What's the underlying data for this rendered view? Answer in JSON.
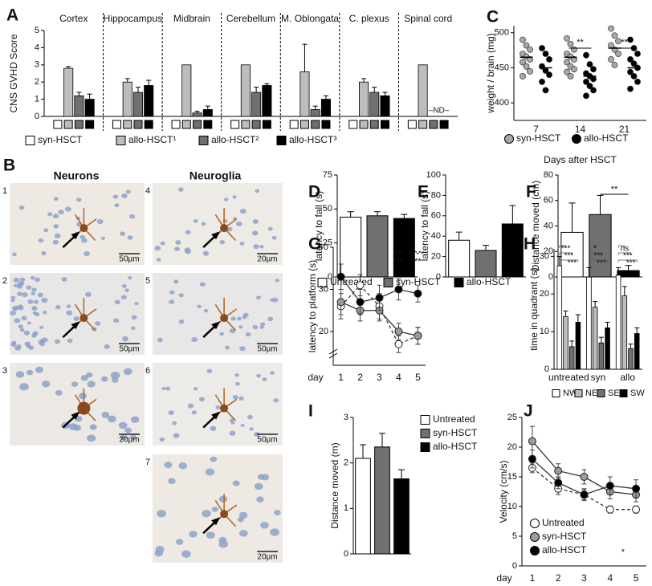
{
  "chart_data": [
    {
      "type": "grouped_bar",
      "panel": "A",
      "ylabel": "CNS GVHD Score",
      "categories": [
        "Cortex",
        "Hippocampus",
        "Midbrain",
        "Cerebellum",
        "M. Oblongata",
        "C. plexus",
        "Spinal cord"
      ],
      "ylim": [
        0,
        5
      ],
      "yticks": [
        0,
        1,
        2,
        3,
        4,
        5
      ],
      "series": [
        {
          "name": "syn-HSCT",
          "color": "#ffffff",
          "values": [
            0,
            0,
            0,
            0,
            0,
            0,
            0
          ],
          "errors": [
            null,
            null,
            null,
            null,
            null,
            null,
            null
          ]
        },
        {
          "name": "allo-HSCT¹",
          "color": "#bdbdbd",
          "values": [
            2.8,
            2.0,
            3.0,
            3.0,
            2.6,
            2.0,
            3.0
          ],
          "errors": [
            0.1,
            0.2,
            null,
            null,
            1.6,
            0.2,
            null
          ]
        },
        {
          "name": "allo-HSCT²",
          "color": "#707070",
          "values": [
            1.2,
            1.4,
            0.2,
            1.4,
            0.4,
            1.4,
            null
          ],
          "errors": [
            0.2,
            0.3,
            0.1,
            0.3,
            0.2,
            0.3,
            null
          ]
        },
        {
          "name": "allo-HSCT³",
          "color": "#000000",
          "values": [
            1.0,
            1.8,
            0.4,
            1.8,
            1.0,
            1.2,
            null
          ],
          "errors": [
            0.3,
            0.3,
            0.2,
            0.1,
            0.2,
            0.2,
            null
          ]
        }
      ],
      "annotations": [
        "–ND–"
      ]
    },
    {
      "type": "strip",
      "panel": "C",
      "ylabel": "weight / brain (mg)",
      "xlabel": "Days after HSCT",
      "categories": [
        "7",
        "14",
        "21"
      ],
      "ylim": [
        375,
        510
      ],
      "yticks": [
        400,
        450,
        500
      ],
      "series": [
        {
          "name": "syn-HSCT",
          "color": "#a8a8a8",
          "values": [
            [
              490,
              482,
              476,
              470,
              466,
              462,
              458,
              452,
              445,
              438
            ],
            [
              492,
              484,
              476,
              470,
              466,
              462,
              458,
              452,
              448,
              444,
              438
            ],
            [
              506,
              496,
              488,
              482,
              476,
              470,
              462,
              454
            ]
          ],
          "means": [
            465,
            465,
            478
          ]
        },
        {
          "name": "allo-HSCT",
          "color": "#000000",
          "values": [
            [
              478,
              470,
              462,
              452,
              446,
              440,
              430,
              418
            ],
            [
              468,
              455,
              448,
              442,
              438,
              434,
              430,
              424,
              418,
              410
            ],
            [
              490,
              478,
              470,
              462,
              456,
              450,
              444,
              438,
              430,
              420
            ]
          ],
          "means": [
            450,
            438,
            450
          ]
        }
      ],
      "annotations": [
        "**",
        "**"
      ]
    },
    {
      "type": "bar",
      "panel": "D",
      "ylabel": "latency to fall (s)",
      "ylim": [
        0,
        75
      ],
      "yticks": [
        0,
        25,
        50,
        75
      ],
      "values": [
        44,
        45,
        43
      ],
      "errors": [
        4,
        3,
        3
      ],
      "colors": [
        "#ffffff",
        "#707070",
        "#000000"
      ],
      "legend": [
        "Untreated",
        "syn-HSCT",
        "allo-HSCT"
      ]
    },
    {
      "type": "bar",
      "panel": "E",
      "ylabel": "latency to fall (s)",
      "ylim": [
        0,
        100
      ],
      "yticks": [
        0,
        20,
        40,
        60,
        80,
        100
      ],
      "values": [
        36,
        26,
        52
      ],
      "errors": [
        8,
        5,
        18
      ],
      "colors": [
        "#ffffff",
        "#707070",
        "#000000"
      ]
    },
    {
      "type": "bar",
      "panel": "F",
      "ylabel": "Distance moved (cm)",
      "ylim": [
        0,
        80
      ],
      "yticks": [
        0,
        20,
        40,
        60,
        80
      ],
      "values": [
        35,
        49,
        5
      ],
      "errors": [
        23,
        15,
        4
      ],
      "colors": [
        "#ffffff",
        "#707070",
        "#000000"
      ],
      "annotations": [
        "**"
      ]
    },
    {
      "type": "line",
      "panel": "G",
      "ylabel": "latency to platform (s)",
      "xlabel": "day",
      "x": [
        1,
        2,
        3,
        4,
        5
      ],
      "xlim": [
        0.6,
        5.4
      ],
      "ylim": [
        12,
        40
      ],
      "yticks": [
        20,
        30,
        40
      ],
      "series": [
        {
          "color": "#ffffff",
          "dash": true,
          "values": [
            26,
            31,
            26,
            17,
            19
          ],
          "errors": [
            3,
            2.5,
            3,
            2,
            2
          ]
        },
        {
          "color": "#9a9a9a",
          "values": [
            27,
            25,
            25,
            20,
            19
          ],
          "errors": [
            3,
            2.5,
            2.5,
            2,
            2
          ]
        },
        {
          "color": "#000000",
          "values": [
            33,
            27,
            28,
            30,
            29
          ],
          "errors": [
            3,
            3,
            3,
            2.5,
            2
          ]
        }
      ],
      "annotations": [
        {
          "x": 4,
          "text": "^^"
        },
        {
          "x": 4,
          "text": "***"
        },
        {
          "x": 5,
          "text": "^^"
        },
        {
          "x": 5,
          "text": "**"
        }
      ]
    },
    {
      "type": "grouped_bar",
      "panel": "H",
      "ylabel": "time in quadrant (s)",
      "categories": [
        "untreated",
        "syn",
        "allo"
      ],
      "ylim": [
        0,
        32
      ],
      "yticks": [
        0,
        10,
        20,
        30
      ],
      "series": [
        {
          "name": "NW",
          "color": "#ffffff",
          "values": [
            27.5,
            24.5,
            25
          ],
          "errors": [
            2.5,
            2.5,
            2
          ]
        },
        {
          "name": "NE",
          "color": "#bdbdbd",
          "values": [
            14,
            16.5,
            19.5
          ],
          "errors": [
            1.5,
            1.5,
            2.5
          ]
        },
        {
          "name": "SE",
          "color": "#707070",
          "values": [
            6,
            7,
            5.5
          ],
          "errors": [
            1.5,
            1.5,
            1.2
          ]
        },
        {
          "name": "SW",
          "color": "#000000",
          "values": [
            12.5,
            11,
            9.5
          ],
          "errors": [
            2,
            1.5,
            1.5
          ]
        }
      ],
      "annotations": [
        [
          "***",
          "***",
          "***"
        ],
        [
          "*",
          "***",
          "***"
        ],
        [
          "ns",
          "***",
          "***"
        ]
      ]
    },
    {
      "type": "bar",
      "panel": "I",
      "ylabel": "Distance moved (m)",
      "ylim": [
        0,
        3
      ],
      "yticks": [
        0,
        1,
        2,
        3
      ],
      "values": [
        2.1,
        2.35,
        1.65
      ],
      "errors": [
        0.3,
        0.3,
        0.2
      ],
      "colors": [
        "#ffffff",
        "#707070",
        "#000000"
      ],
      "legend": [
        "Untreated",
        "syn-HSCT",
        "allo-HSCT"
      ]
    },
    {
      "type": "line",
      "panel": "J",
      "ylabel": "Velocity (cm/s)",
      "xlabel": "day",
      "x": [
        1,
        2,
        3,
        4,
        5
      ],
      "xlim": [
        0.6,
        5.4
      ],
      "ylim": [
        0,
        25
      ],
      "yticks": [
        0,
        5,
        10,
        15,
        20,
        25
      ],
      "series": [
        {
          "name": "Untreated",
          "color": "#ffffff",
          "dash": true,
          "values": [
            16.5,
            13,
            12,
            9.5,
            9.5
          ],
          "errors": [
            0.8,
            1,
            1,
            0.6,
            0.6
          ]
        },
        {
          "name": "syn-HSCT",
          "color": "#9a9a9a",
          "values": [
            21,
            16,
            15,
            12.5,
            12
          ],
          "errors": [
            2.5,
            1.2,
            1.2,
            1.2,
            1.2
          ]
        },
        {
          "name": "allo-HSCT",
          "color": "#000000",
          "values": [
            18,
            14,
            12,
            13.5,
            13
          ],
          "errors": [
            1.5,
            1,
            0.8,
            1.5,
            1.5
          ]
        }
      ],
      "annotations": [
        {
          "x": 4.5,
          "text": "*"
        }
      ]
    }
  ],
  "micrographs": {
    "panel": "B",
    "headings": [
      "Neurons",
      "Neuroglia"
    ],
    "images": [
      {
        "label": "1",
        "scale": "50µm"
      },
      {
        "label": "2",
        "scale": "50µm"
      },
      {
        "label": "3",
        "scale": "20µm"
      },
      {
        "label": "4",
        "scale": "20µm"
      },
      {
        "label": "5",
        "scale": "50µm"
      },
      {
        "label": "6",
        "scale": "50µm"
      },
      {
        "label": "7",
        "scale": "20µm"
      }
    ]
  }
}
